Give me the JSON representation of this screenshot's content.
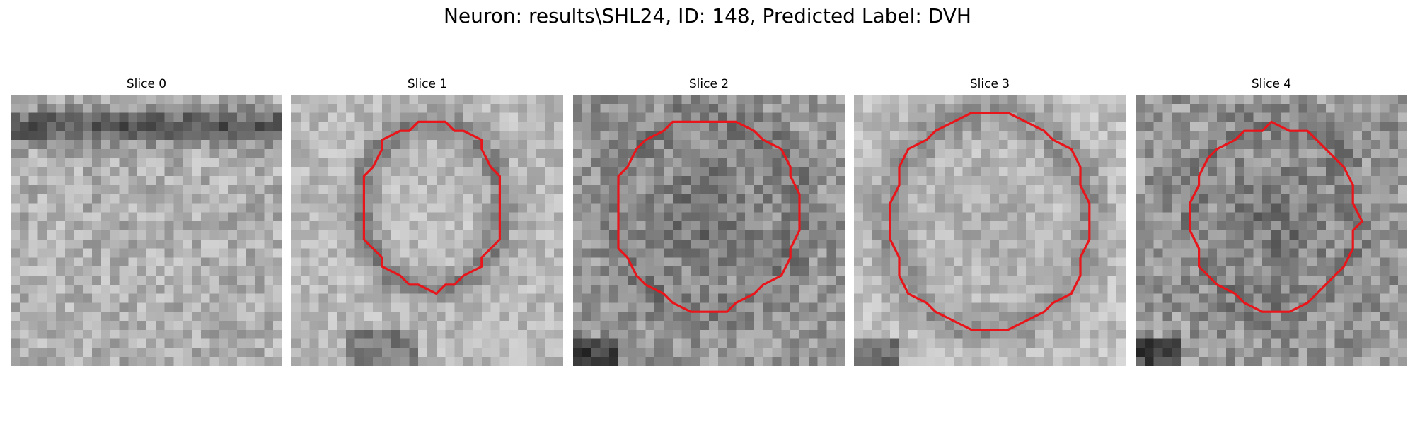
{
  "figure": {
    "title": "Neuron: results\\SHL24, ID: 148, Predicted Label: DVH",
    "contour_color": "#e8151b",
    "colormap": "grayscale"
  },
  "panels": [
    {
      "title": "Slice 0",
      "has_contour": false
    },
    {
      "title": "Slice 1",
      "has_contour": true
    },
    {
      "title": "Slice 2",
      "has_contour": true
    },
    {
      "title": "Slice 3",
      "has_contour": true
    },
    {
      "title": "Slice 4",
      "has_contour": true
    }
  ]
}
